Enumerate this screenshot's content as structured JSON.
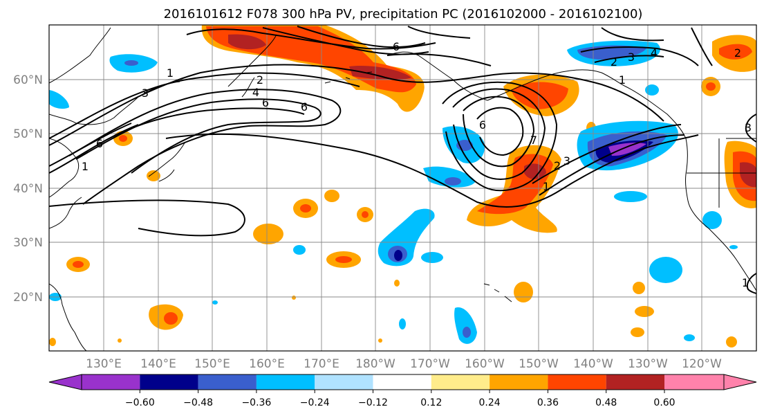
{
  "title": "2016101612 F078 300 hPa PV, precipitation PC (2016102000 - 2016102100)",
  "map": {
    "lat_labels": [
      "60°N",
      "50°N",
      "40°N",
      "30°N",
      "20°N"
    ],
    "lon_labels": [
      "130°E",
      "140°E",
      "150°E",
      "160°E",
      "170°E",
      "180°W",
      "170°W",
      "160°W",
      "150°W",
      "140°W",
      "130°W",
      "120°W"
    ],
    "extent": {
      "lon_min": 120,
      "lon_max": 250,
      "lat_min": 10,
      "lat_max": 70
    },
    "gridlines": true,
    "pv_contour_labels": [
      "1",
      "2",
      "3",
      "4",
      "5",
      "6",
      "7"
    ]
  },
  "colorbar": {
    "ticks": [
      "−0.60",
      "−0.48",
      "−0.36",
      "−0.24",
      "−0.12",
      "0.12",
      "0.24",
      "0.36",
      "0.48",
      "0.60"
    ],
    "colors": [
      "#9932cc",
      "#00008b",
      "#3a5fcd",
      "#00bfff",
      "#b0e2ff",
      "#ffffff",
      "#ffec8b",
      "#ffa500",
      "#ff4500",
      "#b22222",
      "#ff82ab"
    ],
    "extend": "both"
  }
}
